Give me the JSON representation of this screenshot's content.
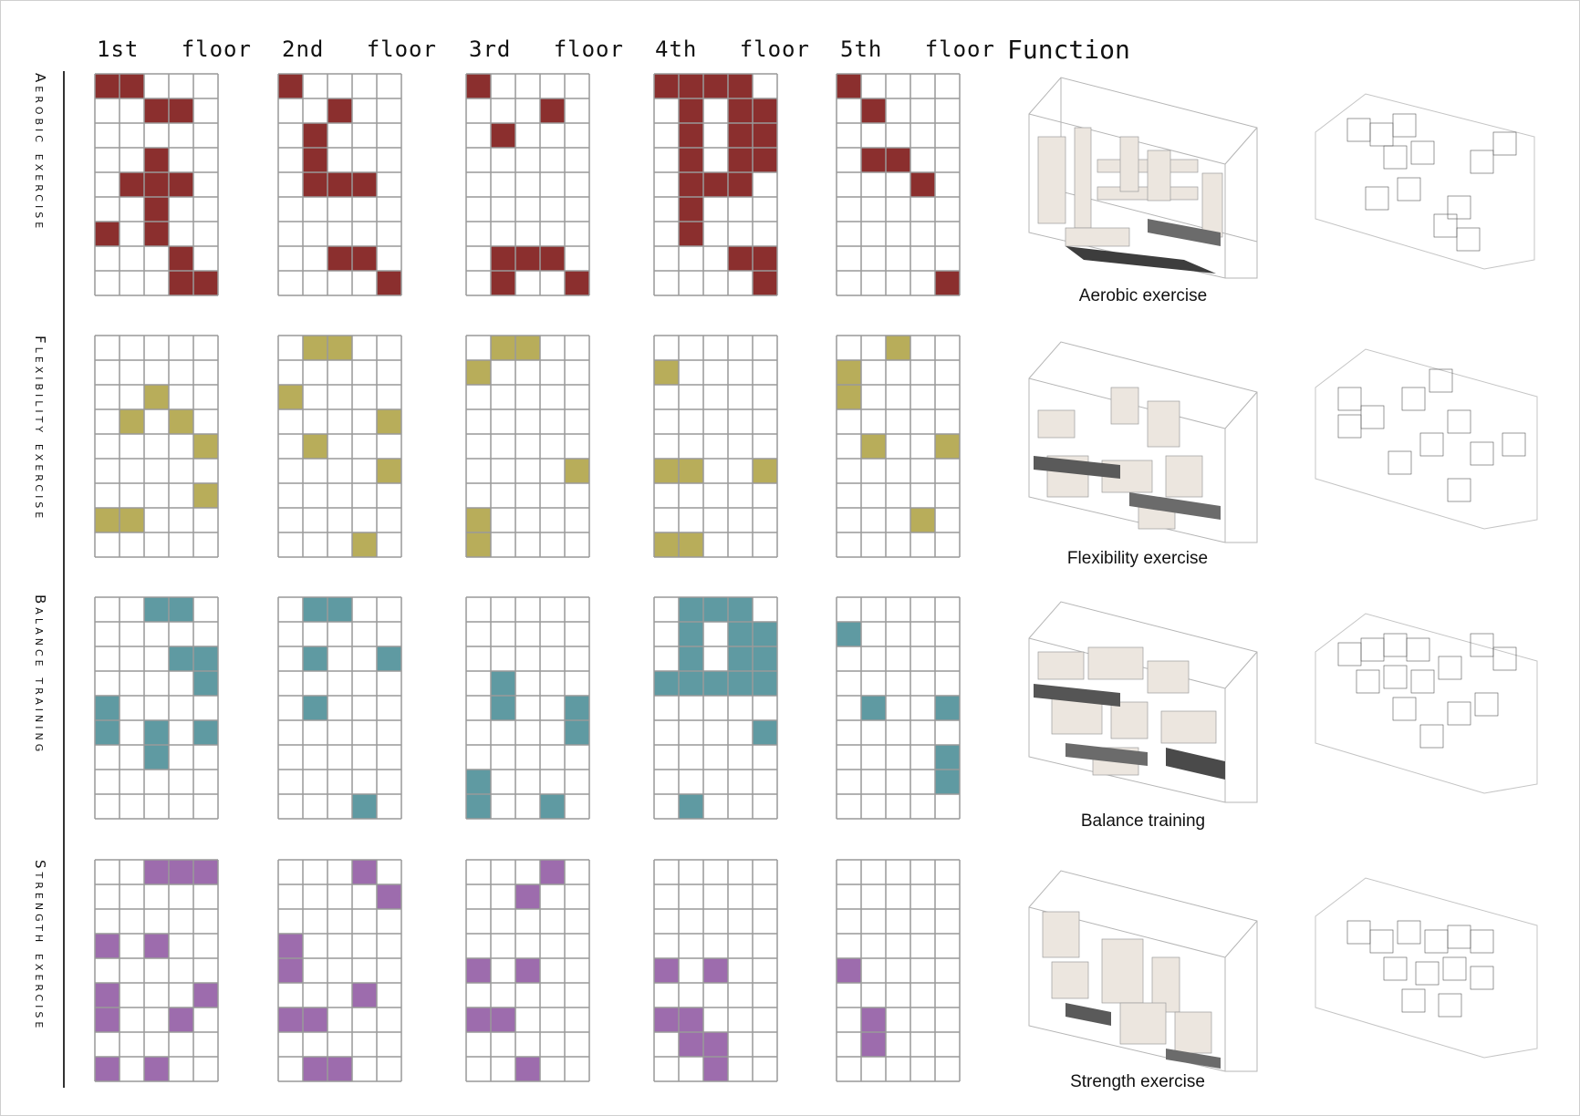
{
  "floors": [
    "1st   floor",
    "2nd   floor",
    "3rd   floor",
    "4th   floor",
    "5th   floor"
  ],
  "function_title": "Function",
  "grid": {
    "cols": 5,
    "rows": 9
  },
  "rows": [
    {
      "label": "Aerobic exercise",
      "caption": "Aerobic exercise",
      "color": "#8b2f2e",
      "cells": [
        [
          [
            0,
            0
          ],
          [
            1,
            0
          ],
          [
            2,
            1
          ],
          [
            3,
            1
          ],
          [
            2,
            3
          ],
          [
            1,
            4
          ],
          [
            2,
            4
          ],
          [
            3,
            4
          ],
          [
            2,
            5
          ],
          [
            0,
            6
          ],
          [
            2,
            6
          ],
          [
            3,
            7
          ],
          [
            3,
            8
          ],
          [
            4,
            8
          ]
        ],
        [
          [
            0,
            0
          ],
          [
            2,
            1
          ],
          [
            1,
            2
          ],
          [
            1,
            3
          ],
          [
            1,
            4
          ],
          [
            2,
            4
          ],
          [
            3,
            4
          ],
          [
            2,
            7
          ],
          [
            3,
            7
          ],
          [
            4,
            8
          ]
        ],
        [
          [
            0,
            0
          ],
          [
            3,
            1
          ],
          [
            1,
            2
          ],
          [
            1,
            7
          ],
          [
            2,
            7
          ],
          [
            3,
            7
          ],
          [
            1,
            8
          ],
          [
            4,
            8
          ]
        ],
        [
          [
            0,
            0
          ],
          [
            1,
            0
          ],
          [
            2,
            0
          ],
          [
            3,
            0
          ],
          [
            1,
            1
          ],
          [
            3,
            1
          ],
          [
            4,
            1
          ],
          [
            1,
            2
          ],
          [
            3,
            2
          ],
          [
            4,
            2
          ],
          [
            1,
            3
          ],
          [
            3,
            3
          ],
          [
            4,
            3
          ],
          [
            1,
            4
          ],
          [
            2,
            4
          ],
          [
            3,
            4
          ],
          [
            1,
            5
          ],
          [
            1,
            6
          ],
          [
            3,
            7
          ],
          [
            4,
            7
          ],
          [
            4,
            8
          ]
        ],
        [
          [
            0,
            0
          ],
          [
            1,
            1
          ],
          [
            1,
            3
          ],
          [
            2,
            3
          ],
          [
            3,
            4
          ],
          [
            4,
            8
          ]
        ]
      ]
    },
    {
      "label": "Flexibility   exercise",
      "caption": "Flexibility  exercise",
      "color": "#b8ad5a",
      "cells": [
        [
          [
            2,
            2
          ],
          [
            1,
            3
          ],
          [
            3,
            3
          ],
          [
            4,
            4
          ],
          [
            4,
            6
          ],
          [
            0,
            7
          ],
          [
            1,
            7
          ]
        ],
        [
          [
            1,
            0
          ],
          [
            2,
            0
          ],
          [
            0,
            2
          ],
          [
            4,
            3
          ],
          [
            1,
            4
          ],
          [
            4,
            5
          ],
          [
            3,
            8
          ]
        ],
        [
          [
            1,
            0
          ],
          [
            2,
            0
          ],
          [
            0,
            1
          ],
          [
            4,
            5
          ],
          [
            0,
            7
          ],
          [
            0,
            8
          ]
        ],
        [
          [
            0,
            1
          ],
          [
            0,
            5
          ],
          [
            1,
            5
          ],
          [
            4,
            5
          ],
          [
            0,
            8
          ],
          [
            1,
            8
          ]
        ],
        [
          [
            2,
            0
          ],
          [
            0,
            1
          ],
          [
            0,
            2
          ],
          [
            1,
            4
          ],
          [
            4,
            4
          ],
          [
            3,
            7
          ]
        ]
      ]
    },
    {
      "label": "Balance training",
      "caption": "Balance training",
      "color": "#5f9aa2",
      "cells": [
        [
          [
            2,
            0
          ],
          [
            3,
            0
          ],
          [
            3,
            2
          ],
          [
            4,
            2
          ],
          [
            4,
            3
          ],
          [
            0,
            4
          ],
          [
            0,
            5
          ],
          [
            2,
            5
          ],
          [
            4,
            5
          ],
          [
            2,
            6
          ]
        ],
        [
          [
            1,
            0
          ],
          [
            2,
            0
          ],
          [
            1,
            2
          ],
          [
            4,
            2
          ],
          [
            1,
            4
          ],
          [
            3,
            8
          ]
        ],
        [
          [
            1,
            3
          ],
          [
            1,
            4
          ],
          [
            4,
            4
          ],
          [
            4,
            5
          ],
          [
            0,
            7
          ],
          [
            0,
            8
          ],
          [
            3,
            8
          ]
        ],
        [
          [
            1,
            0
          ],
          [
            2,
            0
          ],
          [
            3,
            0
          ],
          [
            1,
            1
          ],
          [
            3,
            1
          ],
          [
            4,
            1
          ],
          [
            1,
            2
          ],
          [
            3,
            2
          ],
          [
            4,
            2
          ],
          [
            0,
            3
          ],
          [
            1,
            3
          ],
          [
            2,
            3
          ],
          [
            3,
            3
          ],
          [
            4,
            3
          ],
          [
            4,
            5
          ],
          [
            1,
            8
          ]
        ],
        [
          [
            0,
            1
          ],
          [
            1,
            4
          ],
          [
            4,
            4
          ],
          [
            4,
            6
          ],
          [
            4,
            7
          ]
        ]
      ]
    },
    {
      "label": "Strength exercise",
      "caption": "Strength exercise",
      "color": "#9d6cad",
      "cells": [
        [
          [
            2,
            0
          ],
          [
            3,
            0
          ],
          [
            4,
            0
          ],
          [
            0,
            3
          ],
          [
            2,
            3
          ],
          [
            0,
            5
          ],
          [
            4,
            5
          ],
          [
            0,
            6
          ],
          [
            3,
            6
          ],
          [
            0,
            8
          ],
          [
            2,
            8
          ]
        ],
        [
          [
            3,
            0
          ],
          [
            4,
            1
          ],
          [
            0,
            3
          ],
          [
            0,
            4
          ],
          [
            3,
            5
          ],
          [
            0,
            6
          ],
          [
            1,
            6
          ],
          [
            1,
            8
          ],
          [
            2,
            8
          ]
        ],
        [
          [
            3,
            0
          ],
          [
            2,
            1
          ],
          [
            0,
            4
          ],
          [
            2,
            4
          ],
          [
            0,
            6
          ],
          [
            1,
            6
          ],
          [
            2,
            8
          ]
        ],
        [
          [
            0,
            4
          ],
          [
            2,
            4
          ],
          [
            0,
            6
          ],
          [
            1,
            6
          ],
          [
            1,
            7
          ],
          [
            2,
            7
          ],
          [
            2,
            8
          ]
        ],
        [
          [
            0,
            4
          ],
          [
            1,
            6
          ],
          [
            1,
            7
          ]
        ]
      ]
    }
  ]
}
